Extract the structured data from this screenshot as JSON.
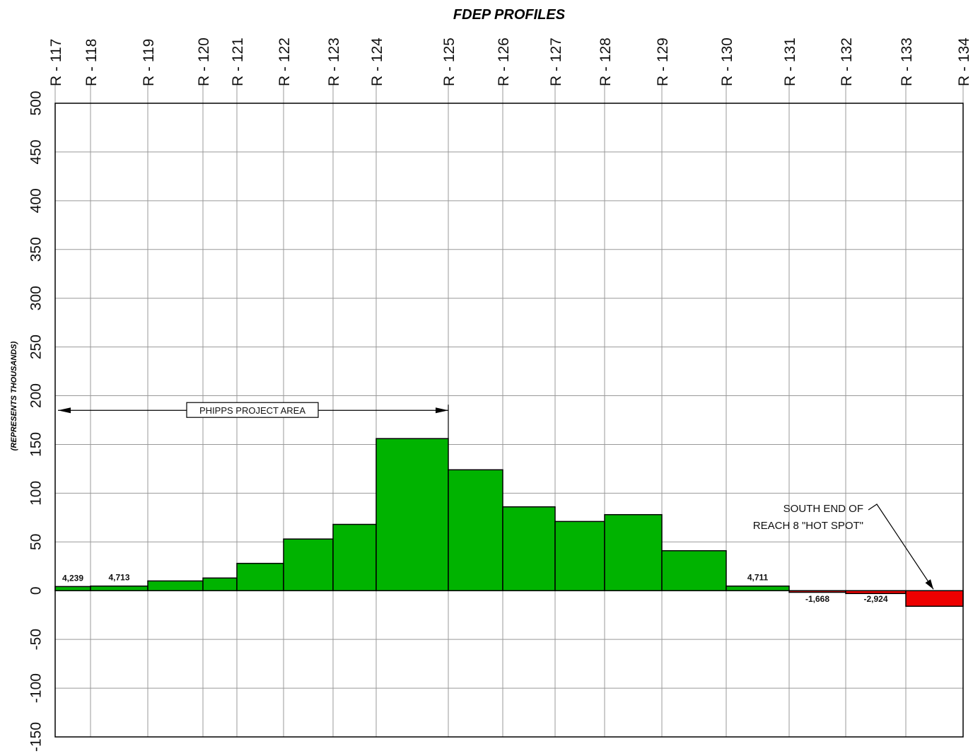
{
  "chart_data": {
    "type": "bar",
    "title": "FDEP PROFILES",
    "ylabel": "(REPRESENTS THOUSANDS)",
    "xlabel": "",
    "ylim": [
      -150,
      500
    ],
    "y_ticks": [
      500,
      450,
      400,
      350,
      300,
      250,
      200,
      150,
      100,
      50,
      0,
      -50,
      -100,
      -150
    ],
    "profiles": [
      "R - 117",
      "R - 118",
      "R - 119",
      "R - 120",
      "R - 121",
      "R - 122",
      "R - 123",
      "R - 124",
      "R - 125",
      "R - 126",
      "R - 127",
      "R - 128",
      "R - 129",
      "R - 130",
      "R - 131",
      "R - 132",
      "R - 133",
      "R - 134"
    ],
    "bars": [
      {
        "from": "R - 117",
        "to": "R - 118",
        "value": 4.239,
        "label": "4,239"
      },
      {
        "from": "R - 118",
        "to": "R - 119",
        "value": 4.713,
        "label": "4,713"
      },
      {
        "from": "R - 119",
        "to": "R - 120",
        "value": 10,
        "label": ""
      },
      {
        "from": "R - 120",
        "to": "R - 121",
        "value": 13,
        "label": ""
      },
      {
        "from": "R - 121",
        "to": "R - 122",
        "value": 28,
        "label": ""
      },
      {
        "from": "R - 122",
        "to": "R - 123",
        "value": 53,
        "label": ""
      },
      {
        "from": "R - 123",
        "to": "R - 124",
        "value": 68,
        "label": ""
      },
      {
        "from": "R - 124",
        "to": "R - 125",
        "value": 156,
        "label": ""
      },
      {
        "from": "R - 125",
        "to": "R - 126",
        "value": 124,
        "label": ""
      },
      {
        "from": "R - 126",
        "to": "R - 127",
        "value": 86,
        "label": ""
      },
      {
        "from": "R - 127",
        "to": "R - 128",
        "value": 71,
        "label": ""
      },
      {
        "from": "R - 128",
        "to": "R - 129",
        "value": 78,
        "label": ""
      },
      {
        "from": "R - 129",
        "to": "R - 130",
        "value": 41,
        "label": ""
      },
      {
        "from": "R - 130",
        "to": "R - 131",
        "value": 4.711,
        "label": "4,711"
      },
      {
        "from": "R - 131",
        "to": "R - 132",
        "value": -1.668,
        "label": "-1,668"
      },
      {
        "from": "R - 132",
        "to": "R - 133",
        "value": -2.924,
        "label": "-2,924"
      },
      {
        "from": "R - 133",
        "to": "R - 134",
        "value": -16,
        "label": ""
      }
    ],
    "colors": {
      "positive": "#00b300",
      "negative": "#ee0000",
      "grid": "#999999",
      "frame": "#000000"
    },
    "grid": true,
    "annotations": {
      "project_area": {
        "text": "PHIPPS PROJECT AREA",
        "from": "R - 117",
        "to": "R - 125",
        "y": 185
      },
      "hot_spot": {
        "line1": "SOUTH END OF",
        "line2": "REACH 8 \"HOT SPOT\"",
        "target": "R - 133"
      }
    }
  }
}
